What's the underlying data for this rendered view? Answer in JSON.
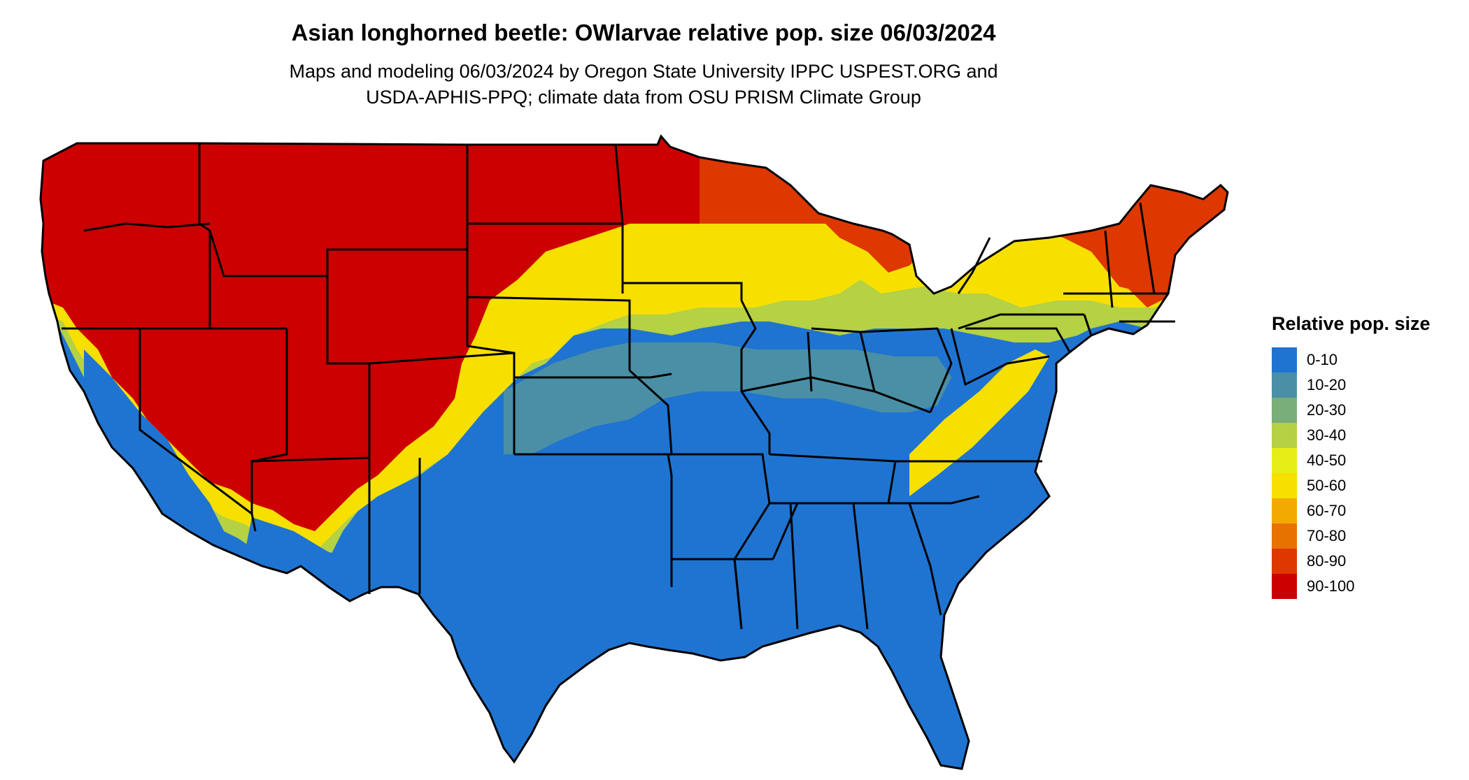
{
  "title": "Asian longhorned beetle: OWlarvae relative pop. size 06/03/2024",
  "subtitle_line1": "Maps and modeling 06/03/2024 by Oregon State University IPPC USPEST.ORG and",
  "subtitle_line2": "USDA-APHIS-PPQ; climate data from OSU PRISM Climate Group",
  "legend": {
    "title": "Relative pop. size",
    "items": [
      {
        "label": "0-10",
        "color": "#1f74d1"
      },
      {
        "label": "10-20",
        "color": "#4a8fa6"
      },
      {
        "label": "20-30",
        "color": "#79ae78"
      },
      {
        "label": "30-40",
        "color": "#b5d144"
      },
      {
        "label": "40-50",
        "color": "#e6ee17"
      },
      {
        "label": "50-60",
        "color": "#f7e000"
      },
      {
        "label": "60-70",
        "color": "#f2aa00"
      },
      {
        "label": "70-80",
        "color": "#e77200"
      },
      {
        "label": "80-90",
        "color": "#dd3800"
      },
      {
        "label": "90-100",
        "color": "#cc0000"
      }
    ]
  }
}
